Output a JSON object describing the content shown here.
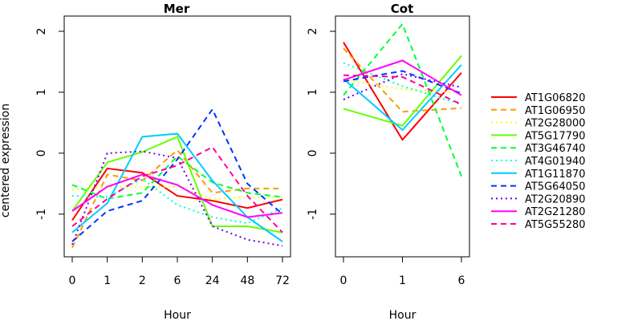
{
  "chart_data": {
    "type": "line",
    "ylabel": "centered expression",
    "ylim": [
      -1.7,
      2.25
    ],
    "yticks": [
      -1,
      0,
      1,
      2
    ],
    "grid": false,
    "legend_placement": "right",
    "legend": [
      {
        "name": "AT1G06820",
        "color": "#FF0000",
        "dash": "solid"
      },
      {
        "name": "AT1G06950",
        "color": "#FF9900",
        "dash": "dashed"
      },
      {
        "name": "AT2G28000",
        "color": "#FFFF00",
        "dash": "dotted"
      },
      {
        "name": "AT5G17790",
        "color": "#66FF00",
        "dash": "solid"
      },
      {
        "name": "AT3G46740",
        "color": "#00FF33",
        "dash": "dashed"
      },
      {
        "name": "AT4G01940",
        "color": "#00FFCC",
        "dash": "dotted"
      },
      {
        "name": "AT1G11870",
        "color": "#00CCFF",
        "dash": "solid"
      },
      {
        "name": "AT5G64050",
        "color": "#0033FF",
        "dash": "dashed"
      },
      {
        "name": "AT2G20890",
        "color": "#6600FF",
        "dash": "dotted"
      },
      {
        "name": "AT2G21280",
        "color": "#FF00FF",
        "dash": "solid"
      },
      {
        "name": "AT5G55280",
        "color": "#FF0099",
        "dash": "dashed"
      }
    ],
    "panels": [
      {
        "title": "Mer",
        "xlabel": "Hour",
        "categories": [
          "0",
          "1",
          "2",
          "6",
          "24",
          "48",
          "72"
        ],
        "series": [
          {
            "name": "AT1G06820",
            "values": [
              -1.1,
              -0.25,
              -0.32,
              -0.7,
              -0.78,
              -0.9,
              -0.76
            ]
          },
          {
            "name": "AT1G06950",
            "values": [
              -1.55,
              -0.35,
              -0.45,
              0.05,
              -0.65,
              -0.58,
              -0.58
            ]
          },
          {
            "name": "AT2G28000",
            "values": [
              -0.6,
              -0.55,
              -0.55,
              -0.55,
              -0.75,
              -0.72,
              -0.72
            ]
          },
          {
            "name": "AT5G17790",
            "values": [
              -0.95,
              -0.15,
              0.02,
              0.27,
              -1.2,
              -1.2,
              -1.3
            ]
          },
          {
            "name": "AT3G46740",
            "values": [
              -0.52,
              -0.75,
              -0.65,
              -0.05,
              -0.48,
              -0.65,
              -0.72
            ]
          },
          {
            "name": "AT4G01940",
            "values": [
              -0.7,
              -0.72,
              -0.42,
              -0.85,
              -1.05,
              -1.15,
              -0.9
            ]
          },
          {
            "name": "AT1G11870",
            "values": [
              -1.3,
              -0.82,
              0.27,
              0.32,
              -0.45,
              -1.05,
              -1.45
            ]
          },
          {
            "name": "AT5G64050",
            "values": [
              -1.45,
              -0.95,
              -0.78,
              -0.1,
              0.72,
              -0.5,
              -1.0
            ]
          },
          {
            "name": "AT2G20890",
            "values": [
              -1.5,
              0.0,
              0.03,
              -0.08,
              -1.2,
              -1.42,
              -1.52
            ]
          },
          {
            "name": "AT2G21280",
            "values": [
              -0.95,
              -0.55,
              -0.35,
              -0.52,
              -0.85,
              -1.05,
              -0.98
            ]
          },
          {
            "name": "AT5G55280",
            "values": [
              -1.2,
              -0.75,
              -0.38,
              -0.2,
              0.1,
              -0.7,
              -1.3
            ]
          }
        ]
      },
      {
        "title": "Cot",
        "xlabel": "Hour",
        "categories": [
          "0",
          "1",
          "6"
        ],
        "series": [
          {
            "name": "AT1G06820",
            "values": [
              1.82,
              0.22,
              1.32
            ]
          },
          {
            "name": "AT1G06950",
            "values": [
              1.72,
              0.68,
              0.74
            ]
          },
          {
            "name": "AT2G28000",
            "values": [
              1.2,
              1.05,
              1.0
            ]
          },
          {
            "name": "AT5G17790",
            "values": [
              0.73,
              0.45,
              1.6
            ]
          },
          {
            "name": "AT3G46740",
            "values": [
              0.95,
              2.12,
              -0.38
            ]
          },
          {
            "name": "AT4G01940",
            "values": [
              1.48,
              1.1,
              0.8
            ]
          },
          {
            "name": "AT1G11870",
            "values": [
              1.22,
              0.38,
              1.45
            ]
          },
          {
            "name": "AT5G64050",
            "values": [
              1.18,
              1.35,
              0.98
            ]
          },
          {
            "name": "AT2G20890",
            "values": [
              0.88,
              1.3,
              1.08
            ]
          },
          {
            "name": "AT2G21280",
            "values": [
              1.2,
              1.52,
              0.95
            ]
          },
          {
            "name": "AT5G55280",
            "values": [
              1.28,
              1.25,
              0.8
            ]
          }
        ]
      }
    ]
  }
}
